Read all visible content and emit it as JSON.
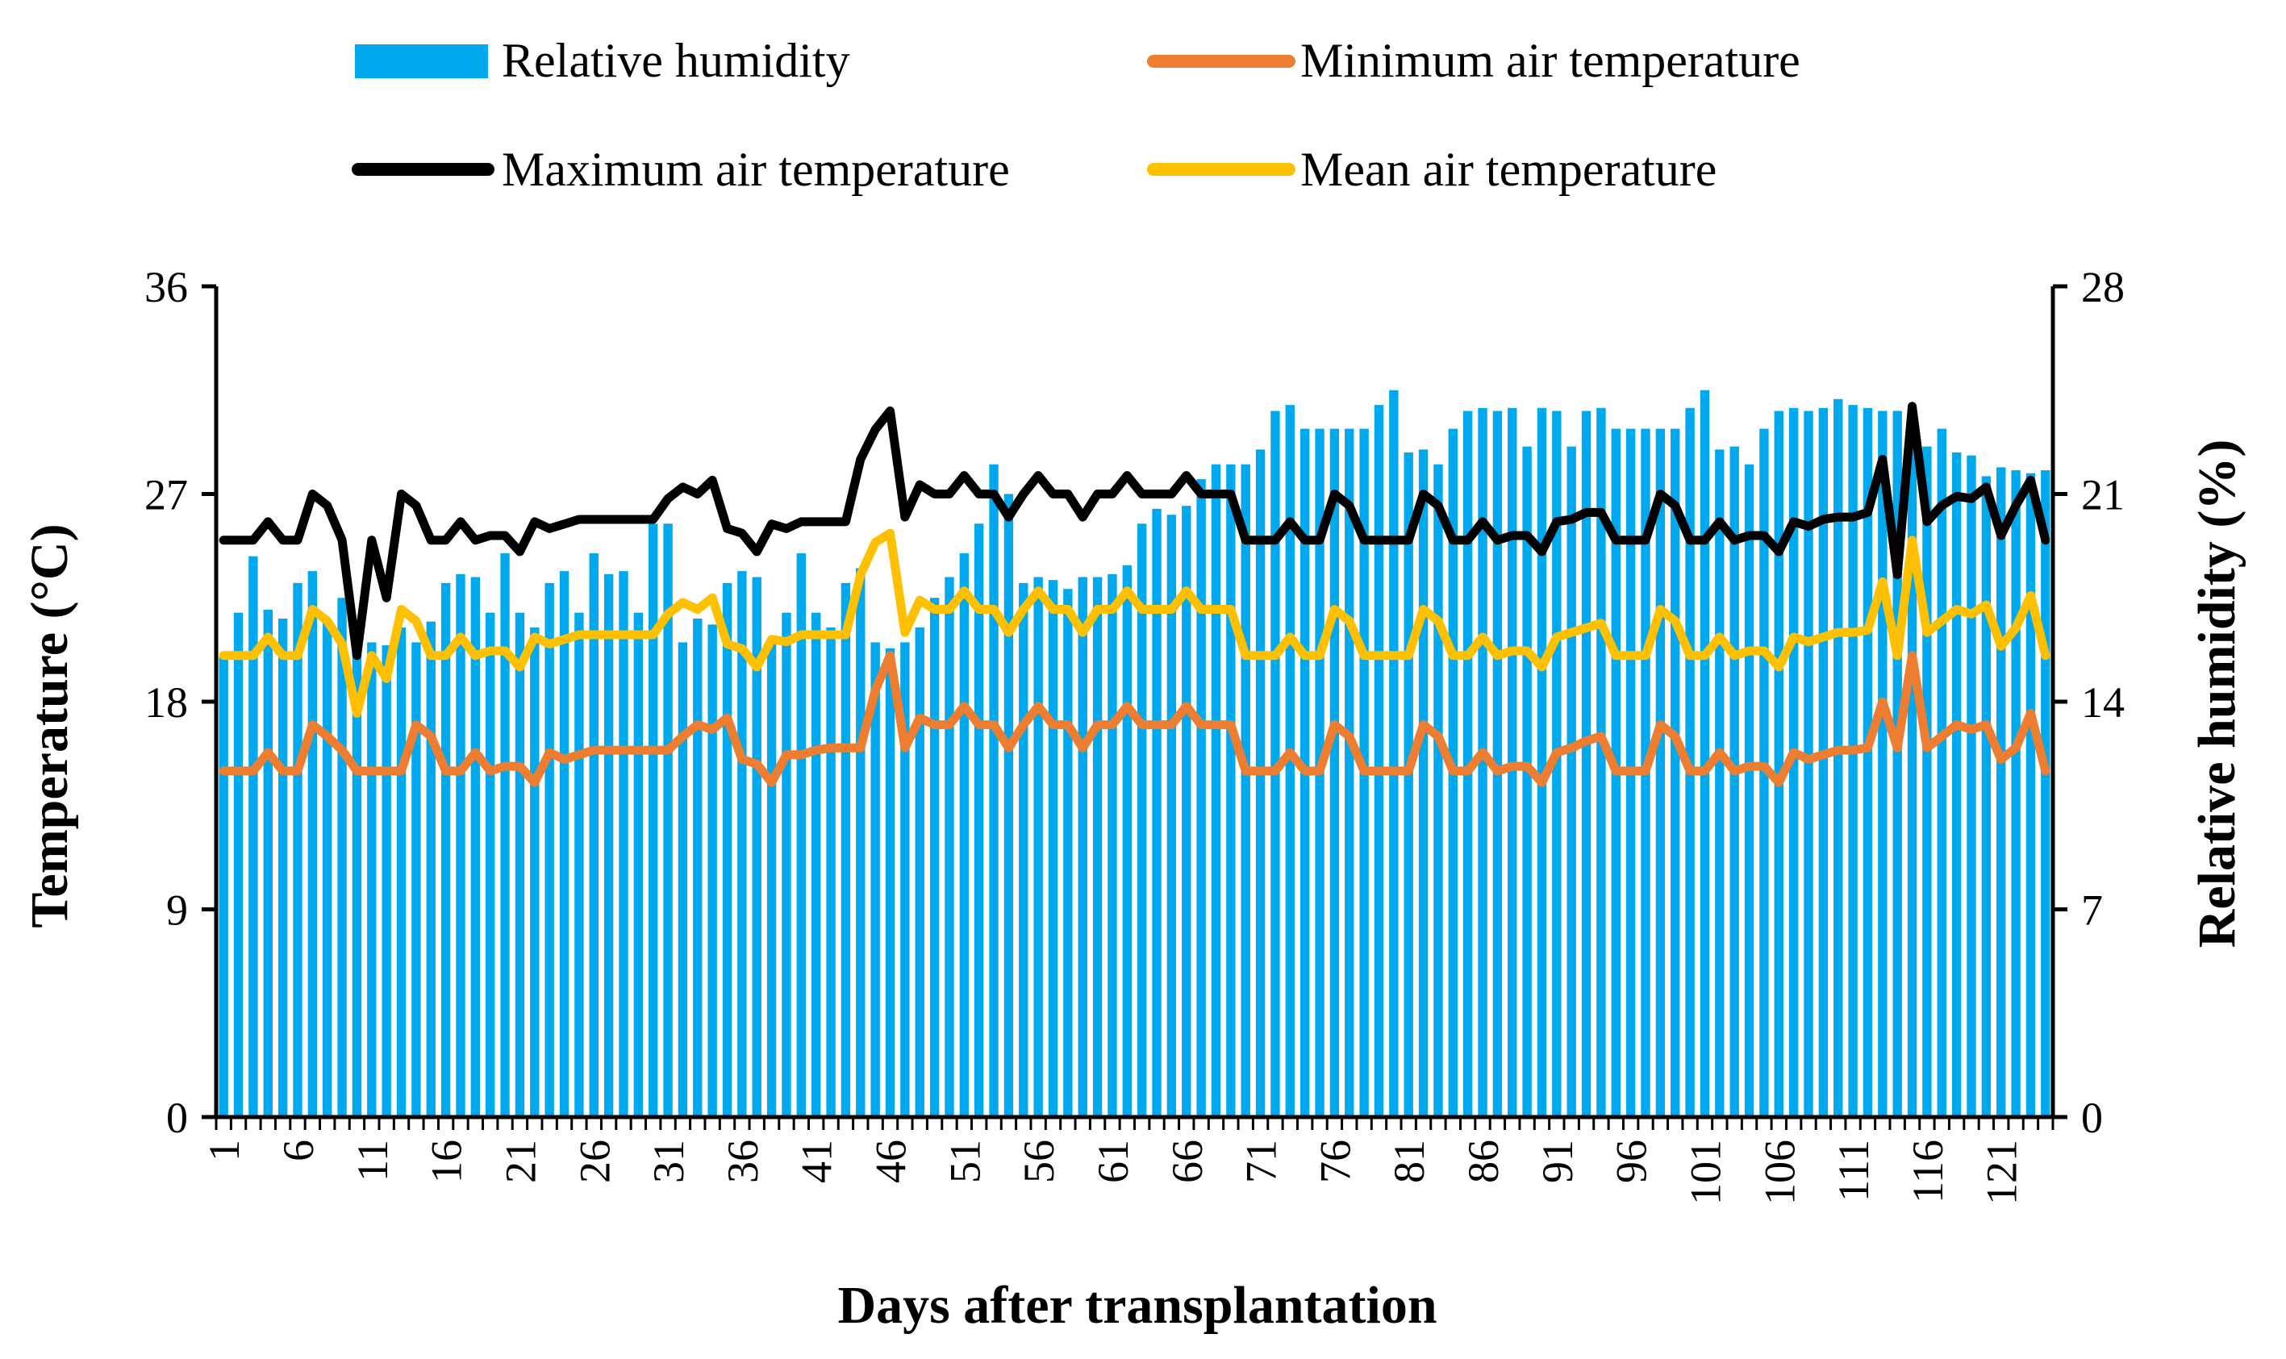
{
  "chart_data": {
    "type": "bar+line",
    "xlabel": "Days after transplantation",
    "ylabel_left": "Temperature (°C)",
    "ylabel_right": "Relative humidity (%)",
    "ylim_left": [
      0,
      36
    ],
    "ylim_right": [
      0,
      28
    ],
    "yticks_left": [
      "0",
      "9",
      "18",
      "27",
      "36"
    ],
    "yticks_right": [
      "0",
      "7",
      "14",
      "21",
      "28"
    ],
    "grid": false,
    "legend_position": "top",
    "x": [
      1,
      2,
      3,
      4,
      5,
      6,
      7,
      8,
      9,
      10,
      11,
      12,
      13,
      14,
      15,
      16,
      17,
      18,
      19,
      20,
      21,
      22,
      23,
      24,
      25,
      26,
      27,
      28,
      29,
      30,
      31,
      32,
      33,
      34,
      35,
      36,
      37,
      38,
      39,
      40,
      41,
      42,
      43,
      44,
      45,
      46,
      47,
      48,
      49,
      50,
      51,
      52,
      53,
      54,
      55,
      56,
      57,
      58,
      59,
      60,
      61,
      62,
      63,
      64,
      65,
      66,
      67,
      68,
      69,
      70,
      71,
      72,
      73,
      74,
      75,
      76,
      77,
      78,
      79,
      80,
      81,
      82,
      83,
      84,
      85,
      86,
      87,
      88,
      89,
      90,
      91,
      92,
      93,
      94,
      95,
      96,
      97,
      98,
      99,
      100,
      101,
      102,
      103,
      104,
      105,
      106,
      107,
      108,
      109,
      110,
      111,
      112,
      113,
      114,
      115,
      116,
      117,
      118,
      119,
      120,
      121,
      122,
      123,
      124
    ],
    "xtick_labels": [
      "1",
      "6",
      "11",
      "16",
      "21",
      "26",
      "31",
      "36",
      "41",
      "46",
      "51",
      "56",
      "61",
      "66",
      "71",
      "76",
      "81",
      "86",
      "91",
      "96",
      "101",
      "106",
      "111",
      "116",
      "121"
    ],
    "series": [
      {
        "name": "Relative humidity",
        "axis": "right",
        "kind": "bar",
        "color": "#00A9EE",
        "values": [
          15.5,
          17.0,
          18.9,
          17.1,
          16.8,
          18.0,
          18.4,
          16.7,
          17.5,
          16.2,
          16.0,
          15.9,
          16.5,
          16.0,
          16.7,
          18.0,
          18.3,
          18.2,
          17.0,
          19.0,
          17.0,
          16.5,
          18.0,
          18.4,
          17.0,
          19.0,
          18.3,
          18.4,
          17.0,
          20.0,
          20.0,
          16.0,
          16.8,
          16.6,
          18.0,
          18.4,
          18.2,
          16.0,
          17.0,
          19.0,
          17.0,
          16.5,
          18.0,
          18.5,
          16.0,
          15.8,
          16.0,
          16.5,
          17.5,
          18.2,
          19.0,
          20.0,
          22.0,
          21.0,
          18.0,
          18.2,
          18.1,
          17.8,
          18.2,
          18.2,
          18.3,
          18.6,
          20.0,
          20.5,
          20.3,
          20.6,
          21.5,
          22.0,
          22.0,
          22.0,
          22.5,
          23.8,
          24.0,
          23.2,
          23.2,
          23.2,
          23.2,
          23.2,
          24.0,
          24.5,
          22.4,
          22.5,
          22.0,
          23.2,
          23.8,
          23.9,
          23.8,
          23.9,
          22.6,
          23.9,
          23.8,
          22.6,
          23.8,
          23.9,
          23.2,
          23.2,
          23.2,
          23.2,
          23.2,
          23.9,
          24.5,
          22.5,
          22.6,
          22.0,
          23.2,
          23.8,
          23.9,
          23.8,
          23.9,
          24.2,
          24.0,
          23.9,
          23.8,
          23.8,
          23.0,
          22.6,
          23.2,
          22.4,
          22.3,
          21.6,
          21.9,
          21.8,
          21.7,
          21.8
        ]
      },
      {
        "name": "Minimum air temperature",
        "axis": "left",
        "kind": "line",
        "color": "#ED7D31",
        "values": [
          15.0,
          15.0,
          15.0,
          15.8,
          15.0,
          15.0,
          17.0,
          16.5,
          15.9,
          15.0,
          15.0,
          15.0,
          15.0,
          17.0,
          16.5,
          15.0,
          15.0,
          15.8,
          15.0,
          15.2,
          15.2,
          14.5,
          15.8,
          15.5,
          15.7,
          15.9,
          15.9,
          15.9,
          15.9,
          15.9,
          15.9,
          16.5,
          17.0,
          16.8,
          17.3,
          15.5,
          15.3,
          14.5,
          15.7,
          15.7,
          15.9,
          16.0,
          16.0,
          16.0,
          18.5,
          20.0,
          16.0,
          17.3,
          17.0,
          17.0,
          17.8,
          17.0,
          17.0,
          16.0,
          17.0,
          17.8,
          17.0,
          17.0,
          16.0,
          17.0,
          17.0,
          17.8,
          17.0,
          17.0,
          17.0,
          17.8,
          17.0,
          17.0,
          17.0,
          15.0,
          15.0,
          15.0,
          15.8,
          15.0,
          15.0,
          17.0,
          16.5,
          15.0,
          15.0,
          15.0,
          15.0,
          17.0,
          16.5,
          15.0,
          15.0,
          15.8,
          15.0,
          15.2,
          15.2,
          14.5,
          15.8,
          16.0,
          16.3,
          16.5,
          15.0,
          15.0,
          15.0,
          17.0,
          16.5,
          15.0,
          15.0,
          15.8,
          15.0,
          15.2,
          15.2,
          14.5,
          15.8,
          15.5,
          15.7,
          15.9,
          15.9,
          16.0,
          18.0,
          16.0,
          20.0,
          16.0,
          16.5,
          17.0,
          16.8,
          17.0,
          15.5,
          16.0,
          17.5,
          15.0
        ]
      },
      {
        "name": "Maximum air temperature",
        "axis": "left",
        "kind": "line",
        "color": "#000000",
        "values": [
          25.0,
          25.0,
          25.0,
          25.8,
          25.0,
          25.0,
          27.0,
          26.5,
          25.0,
          20.0,
          25.0,
          22.5,
          27.0,
          26.5,
          25.0,
          25.0,
          25.8,
          25.0,
          25.2,
          25.2,
          24.5,
          25.8,
          25.5,
          25.7,
          25.9,
          25.9,
          25.9,
          25.9,
          25.9,
          25.9,
          26.8,
          27.3,
          27.0,
          27.6,
          25.5,
          25.3,
          24.5,
          25.7,
          25.5,
          25.8,
          25.8,
          25.8,
          25.8,
          28.5,
          29.8,
          30.6,
          26.0,
          27.4,
          27.0,
          27.0,
          27.8,
          27.0,
          27.0,
          26.0,
          27.0,
          27.8,
          27.0,
          27.0,
          26.0,
          27.0,
          27.0,
          27.8,
          27.0,
          27.0,
          27.0,
          27.8,
          27.0,
          27.0,
          27.0,
          25.0,
          25.0,
          25.0,
          25.8,
          25.0,
          25.0,
          27.0,
          26.5,
          25.0,
          25.0,
          25.0,
          25.0,
          27.0,
          26.5,
          25.0,
          25.0,
          25.8,
          25.0,
          25.2,
          25.2,
          24.5,
          25.8,
          25.9,
          26.2,
          26.2,
          25.0,
          25.0,
          25.0,
          27.0,
          26.5,
          25.0,
          25.0,
          25.8,
          25.0,
          25.2,
          25.2,
          24.5,
          25.8,
          25.6,
          25.9,
          26.0,
          26.0,
          26.2,
          28.5,
          23.5,
          30.8,
          25.8,
          26.5,
          26.9,
          26.8,
          27.3,
          25.2,
          26.5,
          27.6,
          25.0
        ]
      },
      {
        "name": "Mean air temperature",
        "axis": "left",
        "kind": "line",
        "color": "#FFC000",
        "values": [
          20.0,
          20.0,
          20.0,
          20.8,
          20.0,
          20.0,
          22.0,
          21.5,
          20.5,
          17.5,
          20.0,
          19.0,
          22.0,
          21.5,
          20.0,
          20.0,
          20.8,
          20.0,
          20.2,
          20.2,
          19.5,
          20.8,
          20.5,
          20.7,
          20.9,
          20.9,
          20.9,
          20.9,
          20.9,
          20.9,
          21.8,
          22.3,
          22.0,
          22.5,
          20.5,
          20.3,
          19.5,
          20.7,
          20.6,
          20.9,
          20.9,
          20.9,
          20.9,
          23.5,
          24.9,
          25.3,
          21.0,
          22.4,
          22.0,
          22.0,
          22.8,
          22.0,
          22.0,
          21.0,
          22.0,
          22.8,
          22.0,
          22.0,
          21.0,
          22.0,
          22.0,
          22.8,
          22.0,
          22.0,
          22.0,
          22.8,
          22.0,
          22.0,
          22.0,
          20.0,
          20.0,
          20.0,
          20.8,
          20.0,
          20.0,
          22.0,
          21.5,
          20.0,
          20.0,
          20.0,
          20.0,
          22.0,
          21.5,
          20.0,
          20.0,
          20.8,
          20.0,
          20.2,
          20.2,
          19.5,
          20.8,
          21.0,
          21.2,
          21.4,
          20.0,
          20.0,
          20.0,
          22.0,
          21.5,
          20.0,
          20.0,
          20.8,
          20.0,
          20.2,
          20.2,
          19.5,
          20.8,
          20.6,
          20.8,
          21.0,
          21.0,
          21.1,
          23.2,
          20.0,
          25.0,
          21.0,
          21.5,
          22.0,
          21.8,
          22.2,
          20.4,
          21.2,
          22.6,
          20.0
        ]
      }
    ]
  }
}
